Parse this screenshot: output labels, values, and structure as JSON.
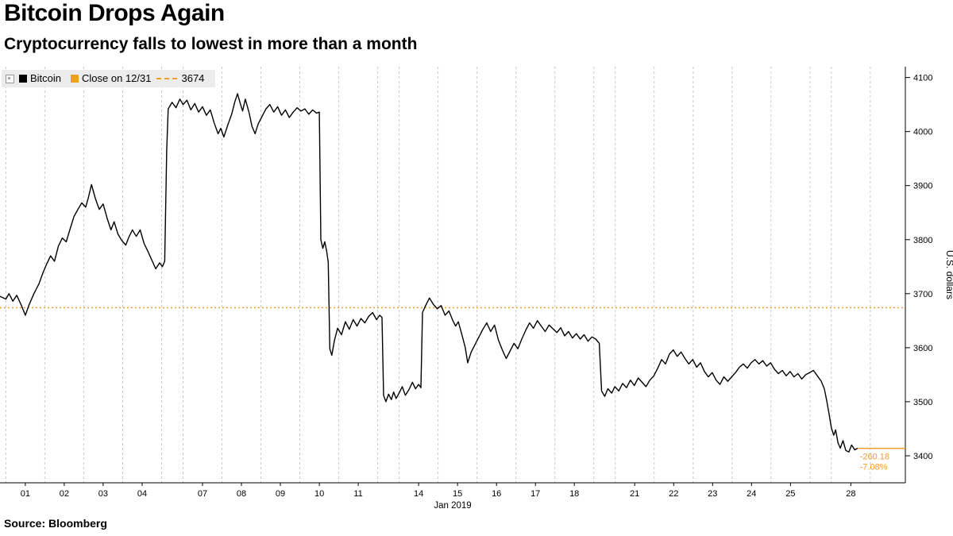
{
  "header": {
    "title": "Bitcoin Drops Again",
    "subtitle": "Cryptocurrency falls to lowest in more than a month"
  },
  "legend": {
    "series_label": "Bitcoin",
    "ref_label": "Close on 12/31",
    "ref_value": "3674"
  },
  "footer": {
    "source": "Source: Bloomberg"
  },
  "chart_data": {
    "type": "line",
    "title": "Bitcoin Drops Again",
    "xlabel": "Jan 2019",
    "ylabel": "U.S. dollars",
    "ylim": [
      3350,
      4120
    ],
    "xlim": [
      -0.15,
      23.1
    ],
    "grid": "vertical-dashed",
    "legend_position": "top-left",
    "colors": {
      "grid": "#c9c9c9",
      "axis": "#000000",
      "series": "#000000",
      "accent": "#f09e2a"
    },
    "yticks": [
      3400,
      3500,
      3600,
      3700,
      3800,
      3900,
      4000,
      4100
    ],
    "xticks": [
      {
        "label": "01",
        "u": 0.5
      },
      {
        "label": "02",
        "u": 1.5
      },
      {
        "label": "03",
        "u": 2.5
      },
      {
        "label": "04",
        "u": 3.5
      },
      {
        "label": "07",
        "u": 5.05
      },
      {
        "label": "08",
        "u": 6.05
      },
      {
        "label": "09",
        "u": 7.05
      },
      {
        "label": "10",
        "u": 8.05
      },
      {
        "label": "11",
        "u": 9.05
      },
      {
        "label": "14",
        "u": 10.6
      },
      {
        "label": "15",
        "u": 11.6
      },
      {
        "label": "16",
        "u": 12.6
      },
      {
        "label": "17",
        "u": 13.6
      },
      {
        "label": "18",
        "u": 14.6
      },
      {
        "label": "21",
        "u": 16.15
      },
      {
        "label": "22",
        "u": 17.15
      },
      {
        "label": "23",
        "u": 18.15
      },
      {
        "label": "24",
        "u": 19.15
      },
      {
        "label": "25",
        "u": 20.15
      },
      {
        "label": "28",
        "u": 21.7
      }
    ],
    "grid_u": [
      0,
      1,
      2,
      3,
      4,
      4.55,
      5.55,
      6.55,
      7.55,
      8.55,
      9.55,
      10.1,
      11.1,
      12.1,
      13.1,
      14.1,
      15.1,
      15.65,
      16.65,
      17.65,
      18.65,
      19.65,
      20.65,
      21.2,
      22.2
    ],
    "ref_line": {
      "label": "Close on 12/31",
      "value": 3674,
      "color": "#f09e2a"
    },
    "last": {
      "value": 3413.82,
      "end_u": 21.87,
      "change_label": "-260.18",
      "pct_label": "-7.08%",
      "color": "#f09e2a"
    },
    "series": [
      {
        "name": "Bitcoin",
        "color": "#000000",
        "points": [
          [
            -0.15,
            3695
          ],
          [
            0,
            3690
          ],
          [
            0.08,
            3700
          ],
          [
            0.18,
            3686
          ],
          [
            0.28,
            3697
          ],
          [
            0.4,
            3678
          ],
          [
            0.5,
            3660
          ],
          [
            0.6,
            3680
          ],
          [
            0.72,
            3700
          ],
          [
            0.85,
            3718
          ],
          [
            0.95,
            3738
          ],
          [
            1.05,
            3755
          ],
          [
            1.15,
            3770
          ],
          [
            1.25,
            3760
          ],
          [
            1.35,
            3788
          ],
          [
            1.45,
            3803
          ],
          [
            1.55,
            3796
          ],
          [
            1.65,
            3820
          ],
          [
            1.75,
            3843
          ],
          [
            1.85,
            3856
          ],
          [
            1.95,
            3868
          ],
          [
            2.05,
            3860
          ],
          [
            2.12,
            3878
          ],
          [
            2.2,
            3902
          ],
          [
            2.3,
            3876
          ],
          [
            2.4,
            3856
          ],
          [
            2.5,
            3866
          ],
          [
            2.6,
            3840
          ],
          [
            2.7,
            3818
          ],
          [
            2.78,
            3833
          ],
          [
            2.88,
            3810
          ],
          [
            2.98,
            3798
          ],
          [
            3.08,
            3790
          ],
          [
            3.15,
            3803
          ],
          [
            3.25,
            3818
          ],
          [
            3.35,
            3806
          ],
          [
            3.45,
            3818
          ],
          [
            3.55,
            3793
          ],
          [
            3.65,
            3778
          ],
          [
            3.75,
            3762
          ],
          [
            3.85,
            3746
          ],
          [
            3.95,
            3757
          ],
          [
            4.02,
            3750
          ],
          [
            4.08,
            3760
          ],
          [
            4.13,
            3965
          ],
          [
            4.17,
            4042
          ],
          [
            4.27,
            4054
          ],
          [
            4.37,
            4044
          ],
          [
            4.47,
            4060
          ],
          [
            4.55,
            4050
          ],
          [
            4.65,
            4058
          ],
          [
            4.75,
            4040
          ],
          [
            4.85,
            4052
          ],
          [
            4.95,
            4036
          ],
          [
            5.05,
            4046
          ],
          [
            5.15,
            4030
          ],
          [
            5.25,
            4040
          ],
          [
            5.35,
            4016
          ],
          [
            5.45,
            3996
          ],
          [
            5.52,
            4006
          ],
          [
            5.6,
            3990
          ],
          [
            5.7,
            4012
          ],
          [
            5.8,
            4032
          ],
          [
            5.88,
            4055
          ],
          [
            5.95,
            4070
          ],
          [
            6.02,
            4052
          ],
          [
            6.08,
            4038
          ],
          [
            6.15,
            4060
          ],
          [
            6.25,
            4034
          ],
          [
            6.32,
            4010
          ],
          [
            6.4,
            3996
          ],
          [
            6.48,
            4014
          ],
          [
            6.58,
            4028
          ],
          [
            6.68,
            4042
          ],
          [
            6.78,
            4050
          ],
          [
            6.88,
            4036
          ],
          [
            6.98,
            4046
          ],
          [
            7.08,
            4030
          ],
          [
            7.18,
            4040
          ],
          [
            7.28,
            4026
          ],
          [
            7.38,
            4036
          ],
          [
            7.48,
            4044
          ],
          [
            7.58,
            4038
          ],
          [
            7.68,
            4042
          ],
          [
            7.78,
            4032
          ],
          [
            7.88,
            4040
          ],
          [
            7.98,
            4034
          ],
          [
            8.05,
            4036
          ],
          [
            8.09,
            3800
          ],
          [
            8.14,
            3784
          ],
          [
            8.19,
            3796
          ],
          [
            8.24,
            3778
          ],
          [
            8.28,
            3758
          ],
          [
            8.32,
            3598
          ],
          [
            8.37,
            3586
          ],
          [
            8.44,
            3614
          ],
          [
            8.52,
            3636
          ],
          [
            8.62,
            3624
          ],
          [
            8.72,
            3648
          ],
          [
            8.82,
            3634
          ],
          [
            8.92,
            3652
          ],
          [
            9.02,
            3640
          ],
          [
            9.12,
            3654
          ],
          [
            9.22,
            3646
          ],
          [
            9.32,
            3658
          ],
          [
            9.42,
            3665
          ],
          [
            9.52,
            3652
          ],
          [
            9.6,
            3660
          ],
          [
            9.66,
            3656
          ],
          [
            9.7,
            3512
          ],
          [
            9.76,
            3500
          ],
          [
            9.83,
            3514
          ],
          [
            9.9,
            3504
          ],
          [
            9.96,
            3518
          ],
          [
            10.02,
            3506
          ],
          [
            10.1,
            3516
          ],
          [
            10.18,
            3528
          ],
          [
            10.26,
            3512
          ],
          [
            10.35,
            3522
          ],
          [
            10.44,
            3536
          ],
          [
            10.52,
            3524
          ],
          [
            10.6,
            3532
          ],
          [
            10.66,
            3526
          ],
          [
            10.7,
            3665
          ],
          [
            10.78,
            3678
          ],
          [
            10.88,
            3692
          ],
          [
            10.98,
            3680
          ],
          [
            11.08,
            3672
          ],
          [
            11.18,
            3678
          ],
          [
            11.28,
            3660
          ],
          [
            11.38,
            3668
          ],
          [
            11.48,
            3650
          ],
          [
            11.55,
            3640
          ],
          [
            11.62,
            3648
          ],
          [
            11.72,
            3622
          ],
          [
            11.8,
            3600
          ],
          [
            11.86,
            3572
          ],
          [
            11.95,
            3592
          ],
          [
            12.05,
            3606
          ],
          [
            12.15,
            3620
          ],
          [
            12.25,
            3634
          ],
          [
            12.35,
            3646
          ],
          [
            12.45,
            3630
          ],
          [
            12.55,
            3642
          ],
          [
            12.65,
            3614
          ],
          [
            12.75,
            3596
          ],
          [
            12.85,
            3580
          ],
          [
            12.95,
            3594
          ],
          [
            13.05,
            3608
          ],
          [
            13.15,
            3598
          ],
          [
            13.25,
            3616
          ],
          [
            13.35,
            3632
          ],
          [
            13.45,
            3646
          ],
          [
            13.55,
            3636
          ],
          [
            13.65,
            3650
          ],
          [
            13.75,
            3640
          ],
          [
            13.85,
            3630
          ],
          [
            13.95,
            3642
          ],
          [
            14.05,
            3635
          ],
          [
            14.15,
            3628
          ],
          [
            14.25,
            3637
          ],
          [
            14.35,
            3622
          ],
          [
            14.45,
            3630
          ],
          [
            14.55,
            3618
          ],
          [
            14.65,
            3626
          ],
          [
            14.75,
            3616
          ],
          [
            14.85,
            3624
          ],
          [
            14.95,
            3612
          ],
          [
            15.05,
            3620
          ],
          [
            15.15,
            3616
          ],
          [
            15.24,
            3608
          ],
          [
            15.3,
            3520
          ],
          [
            15.38,
            3510
          ],
          [
            15.46,
            3524
          ],
          [
            15.56,
            3516
          ],
          [
            15.64,
            3528
          ],
          [
            15.74,
            3520
          ],
          [
            15.84,
            3534
          ],
          [
            15.94,
            3526
          ],
          [
            16.04,
            3540
          ],
          [
            16.14,
            3530
          ],
          [
            16.24,
            3544
          ],
          [
            16.34,
            3536
          ],
          [
            16.44,
            3528
          ],
          [
            16.54,
            3540
          ],
          [
            16.64,
            3548
          ],
          [
            16.74,
            3562
          ],
          [
            16.84,
            3578
          ],
          [
            16.94,
            3570
          ],
          [
            17.04,
            3588
          ],
          [
            17.14,
            3596
          ],
          [
            17.24,
            3584
          ],
          [
            17.34,
            3592
          ],
          [
            17.44,
            3580
          ],
          [
            17.54,
            3570
          ],
          [
            17.64,
            3578
          ],
          [
            17.74,
            3564
          ],
          [
            17.84,
            3572
          ],
          [
            17.94,
            3556
          ],
          [
            18.04,
            3546
          ],
          [
            18.14,
            3554
          ],
          [
            18.24,
            3540
          ],
          [
            18.34,
            3532
          ],
          [
            18.44,
            3546
          ],
          [
            18.54,
            3538
          ],
          [
            18.64,
            3546
          ],
          [
            18.74,
            3554
          ],
          [
            18.84,
            3564
          ],
          [
            18.94,
            3570
          ],
          [
            19.04,
            3562
          ],
          [
            19.14,
            3572
          ],
          [
            19.24,
            3578
          ],
          [
            19.34,
            3570
          ],
          [
            19.44,
            3576
          ],
          [
            19.54,
            3566
          ],
          [
            19.64,
            3572
          ],
          [
            19.74,
            3560
          ],
          [
            19.84,
            3552
          ],
          [
            19.94,
            3558
          ],
          [
            20.04,
            3548
          ],
          [
            20.14,
            3556
          ],
          [
            20.24,
            3546
          ],
          [
            20.34,
            3552
          ],
          [
            20.44,
            3542
          ],
          [
            20.54,
            3550
          ],
          [
            20.64,
            3554
          ],
          [
            20.74,
            3558
          ],
          [
            20.84,
            3548
          ],
          [
            20.94,
            3538
          ],
          [
            21.02,
            3524
          ],
          [
            21.08,
            3502
          ],
          [
            21.14,
            3478
          ],
          [
            21.2,
            3452
          ],
          [
            21.26,
            3438
          ],
          [
            21.31,
            3448
          ],
          [
            21.37,
            3424
          ],
          [
            21.43,
            3414
          ],
          [
            21.5,
            3428
          ],
          [
            21.57,
            3410
          ],
          [
            21.65,
            3407
          ],
          [
            21.72,
            3420
          ],
          [
            21.8,
            3411
          ],
          [
            21.87,
            3413.8
          ]
        ]
      }
    ]
  }
}
